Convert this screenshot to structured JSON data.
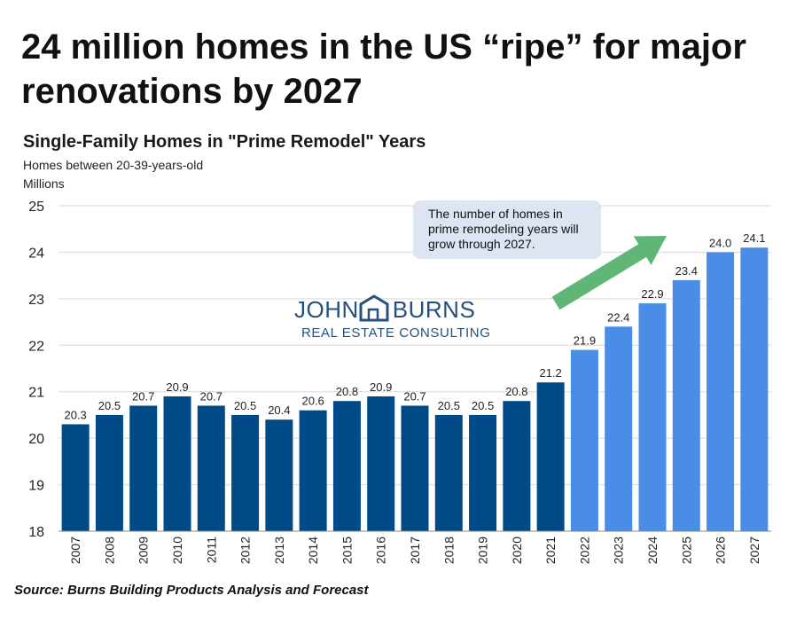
{
  "headline": "24 million homes in the US “ripe” for major renovations by 2027",
  "source": "Source: Burns Building Products Analysis and Forecast",
  "callout": "The number of homes in prime remodeling years will grow through 2027.",
  "logo": {
    "line1_left": "JOHN",
    "line1_right": "BURNS",
    "line2": "REAL ESTATE CONSULTING",
    "icon": "house-icon"
  },
  "colors": {
    "historical": "#004b87",
    "forecast": "#4a8de6",
    "arrow": "#5fb677",
    "callout_bg": "#dde5f3"
  },
  "chart_data": {
    "type": "bar",
    "title": "Single-Family Homes in \"Prime Remodel\" Years",
    "subtitle": "Homes between 20-39-years-old",
    "ylabel": "Millions",
    "xlabel": "",
    "ylim": [
      18,
      25
    ],
    "yticks": [
      18,
      19,
      20,
      21,
      22,
      23,
      24,
      25
    ],
    "grid": true,
    "categories": [
      "2007",
      "2008",
      "2009",
      "2010",
      "2011",
      "2012",
      "2013",
      "2014",
      "2015",
      "2016",
      "2017",
      "2018",
      "2019",
      "2020",
      "2021",
      "2022",
      "2023",
      "2024",
      "2025",
      "2026",
      "2027"
    ],
    "values": [
      20.3,
      20.5,
      20.7,
      20.9,
      20.7,
      20.5,
      20.4,
      20.6,
      20.8,
      20.9,
      20.7,
      20.5,
      20.5,
      20.8,
      21.2,
      21.9,
      22.4,
      22.9,
      23.4,
      24.0,
      24.1
    ],
    "value_labels": [
      "20.3",
      "20.5",
      "20.7",
      "20.9",
      "20.7",
      "20.5",
      "20.4",
      "20.6",
      "20.8",
      "20.9",
      "20.7",
      "20.5",
      "20.5",
      "20.8",
      "21.2",
      "21.9",
      "22.4",
      "22.9",
      "23.4",
      "24.0",
      "24.1"
    ],
    "forecast_from": "2022"
  }
}
